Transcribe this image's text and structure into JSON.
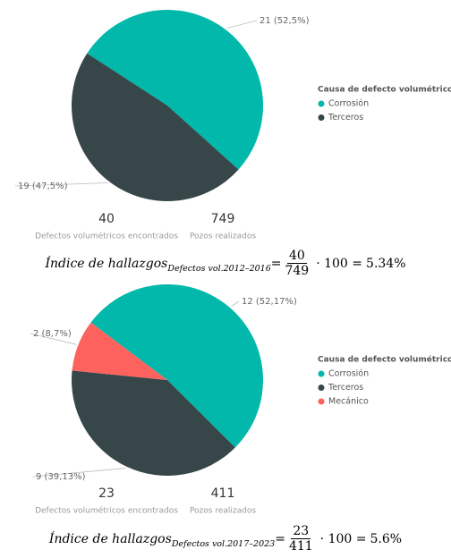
{
  "chart_data": [
    {
      "type": "pie",
      "categories": [
        "Corrosión",
        "Terceros"
      ],
      "values": [
        21,
        19
      ],
      "value_labels": [
        "21 (52,5%)",
        "19 (47,5%)"
      ],
      "colors": [
        "#01b8aa",
        "#374649"
      ],
      "legend_title": "Causa de defecto volumétrico",
      "legend": "right",
      "kpis": [
        {
          "value": 40,
          "label": "Defectos volumétricos encontrados"
        },
        {
          "value": 749,
          "label": "Pozos realizados"
        }
      ],
      "formula": {
        "lhs": "Índice de hallazgos",
        "sub": "Defectos vol.",
        "period": "2012–2016",
        "eq": "=",
        "op": "· 100 =",
        "result": "5.34%"
      }
    },
    {
      "type": "pie",
      "categories": [
        "Corrosión",
        "Terceros",
        "Mecánico"
      ],
      "values": [
        12,
        9,
        2
      ],
      "value_labels": [
        "12 (52,17%)",
        "9 (39,13%)",
        "2 (8,7%)"
      ],
      "colors": [
        "#01b8aa",
        "#374649",
        "#fd625e"
      ],
      "legend_title": "Causa de defecto volumétrico",
      "legend": "right",
      "kpis": [
        {
          "value": 23,
          "label": "Defectos volumétricos encontrados"
        },
        {
          "value": 411,
          "label": "Pozos realizados"
        }
      ],
      "formula": {
        "lhs": "Índice de hallazgos",
        "sub": "Defectos vol.",
        "period": "2017–2023",
        "eq": "=",
        "op": "· 100 =",
        "result": "5.6%"
      }
    }
  ]
}
